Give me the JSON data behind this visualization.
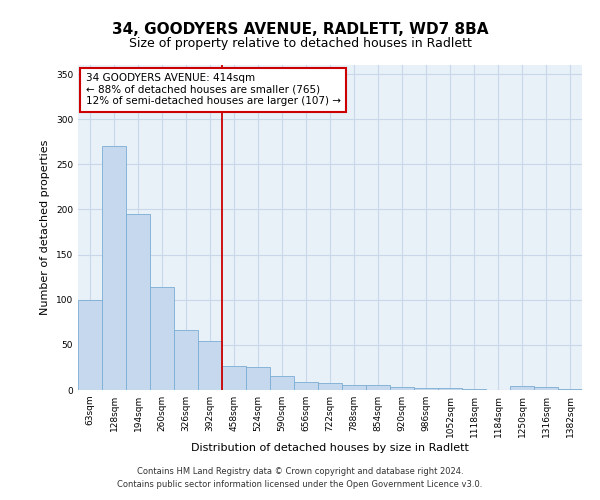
{
  "title_line1": "34, GOODYERS AVENUE, RADLETT, WD7 8BA",
  "title_line2": "Size of property relative to detached houses in Radlett",
  "xlabel": "Distribution of detached houses by size in Radlett",
  "ylabel": "Number of detached properties",
  "categories": [
    "63sqm",
    "128sqm",
    "194sqm",
    "260sqm",
    "326sqm",
    "392sqm",
    "458sqm",
    "524sqm",
    "590sqm",
    "656sqm",
    "722sqm",
    "788sqm",
    "854sqm",
    "920sqm",
    "986sqm",
    "1052sqm",
    "1118sqm",
    "1184sqm",
    "1250sqm",
    "1316sqm",
    "1382sqm"
  ],
  "values": [
    100,
    270,
    195,
    114,
    67,
    54,
    27,
    26,
    16,
    9,
    8,
    5,
    5,
    3,
    2,
    2,
    1,
    0,
    4,
    3,
    1
  ],
  "bar_color": "#c5d8ee",
  "bar_edge_color": "#7aadd4",
  "grid_color": "#c8d8e8",
  "background_color": "#e8f0f8",
  "vline_x": 5.5,
  "vline_color": "#cc0000",
  "annotation_text": "34 GOODYERS AVENUE: 414sqm\n← 88% of detached houses are smaller (765)\n12% of semi-detached houses are larger (107) →",
  "annotation_box_color": "#cc0000",
  "ylim": [
    0,
    360
  ],
  "yticks": [
    0,
    50,
    100,
    150,
    200,
    250,
    300,
    350
  ],
  "footer_line1": "Contains HM Land Registry data © Crown copyright and database right 2024.",
  "footer_line2": "Contains public sector information licensed under the Open Government Licence v3.0.",
  "title_fontsize": 11,
  "subtitle_fontsize": 9,
  "tick_fontsize": 6.5,
  "label_fontsize": 8,
  "annot_fontsize": 7.5
}
